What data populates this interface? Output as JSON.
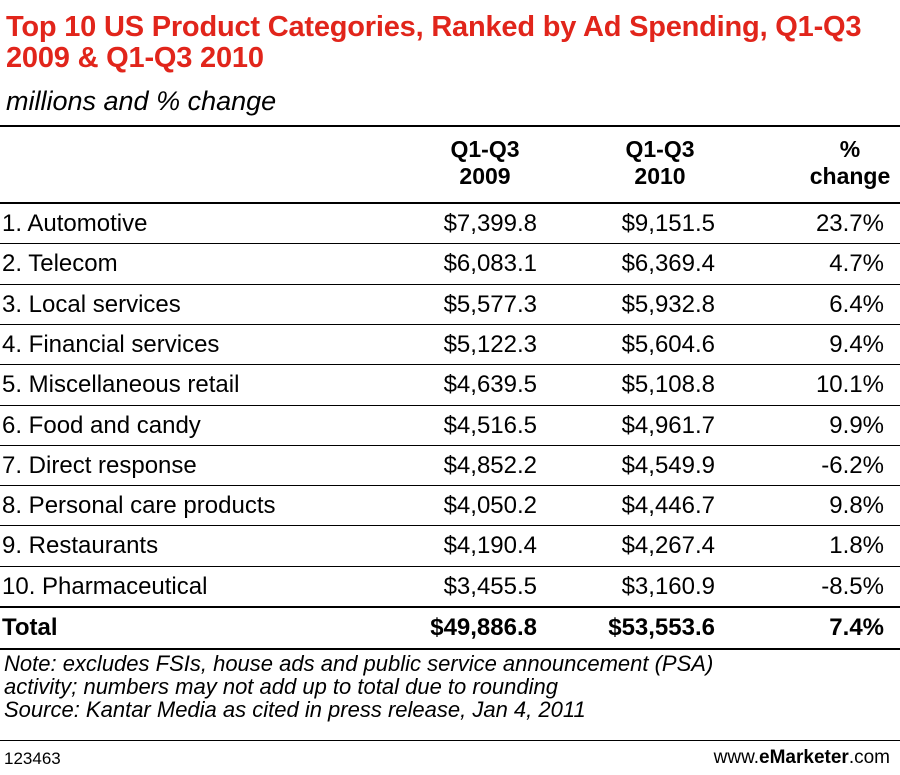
{
  "title": "Top 10 US Product Categories, Ranked by Ad Spending, Q1-Q3 2009 & Q1-Q3 2010",
  "subtitle": "millions and % change",
  "columns": [
    {
      "line1": "Q1-Q3",
      "line2": "2009"
    },
    {
      "line1": "Q1-Q3",
      "line2": "2010"
    },
    {
      "line1": "%",
      "line2": "change"
    }
  ],
  "rows": [
    {
      "category": "1. Automotive",
      "q2009": "$7,399.8",
      "q2010": "$9,151.5",
      "change": "23.7%"
    },
    {
      "category": "2. Telecom",
      "q2009": "$6,083.1",
      "q2010": "$6,369.4",
      "change": "4.7%"
    },
    {
      "category": "3. Local services",
      "q2009": "$5,577.3",
      "q2010": "$5,932.8",
      "change": "6.4%"
    },
    {
      "category": "4. Financial services",
      "q2009": "$5,122.3",
      "q2010": "$5,604.6",
      "change": "9.4%"
    },
    {
      "category": "5. Miscellaneous retail",
      "q2009": "$4,639.5",
      "q2010": "$5,108.8",
      "change": "10.1%"
    },
    {
      "category": "6. Food and candy",
      "q2009": "$4,516.5",
      "q2010": "$4,961.7",
      "change": "9.9%"
    },
    {
      "category": "7. Direct response",
      "q2009": "$4,852.2",
      "q2010": "$4,549.9",
      "change": "-6.2%"
    },
    {
      "category": "8. Personal care products",
      "q2009": "$4,050.2",
      "q2010": "$4,446.7",
      "change": "9.8%"
    },
    {
      "category": "9. Restaurants",
      "q2009": "$4,190.4",
      "q2010": "$4,267.4",
      "change": "1.8%"
    },
    {
      "category": "10. Pharmaceutical",
      "q2009": "$3,455.5",
      "q2010": "$3,160.9",
      "change": "-8.5%"
    }
  ],
  "total": {
    "category": "Total",
    "q2009": "$49,886.8",
    "q2010": "$53,553.6",
    "change": "7.4%"
  },
  "note_line1": "Note: excludes FSIs, house ads and public service announcement (PSA)",
  "note_line2": "activity; numbers may not add up to total due to rounding",
  "source": "Source: Kantar Media as cited in press release, Jan 4, 2011",
  "chart_id": "123463",
  "brand": {
    "prefix": "www.",
    "name": "eMarketer",
    "suffix": ".com"
  },
  "colors": {
    "title": "#e1251b",
    "text": "#000000",
    "background": "#ffffff"
  },
  "chart_data": {
    "type": "table",
    "title": "Top 10 US Product Categories, Ranked by Ad Spending, Q1-Q3 2009 & Q1-Q3 2010",
    "subtitle": "millions and % change",
    "columns": [
      "Q1-Q3 2009",
      "Q1-Q3 2010",
      "% change"
    ],
    "categories": [
      "Automotive",
      "Telecom",
      "Local services",
      "Financial services",
      "Miscellaneous retail",
      "Food and candy",
      "Direct response",
      "Personal care products",
      "Restaurants",
      "Pharmaceutical",
      "Total"
    ],
    "series": [
      {
        "name": "Q1-Q3 2009",
        "values": [
          7399.8,
          6083.1,
          5577.3,
          5122.3,
          4639.5,
          4516.5,
          4852.2,
          4050.2,
          4190.4,
          3455.5,
          49886.8
        ]
      },
      {
        "name": "Q1-Q3 2010",
        "values": [
          9151.5,
          6369.4,
          5932.8,
          5604.6,
          5108.8,
          4961.7,
          4549.9,
          4446.7,
          4267.4,
          3160.9,
          53553.6
        ]
      },
      {
        "name": "% change",
        "values": [
          23.7,
          4.7,
          6.4,
          9.4,
          10.1,
          9.9,
          -6.2,
          9.8,
          1.8,
          -8.5,
          7.4
        ]
      }
    ]
  }
}
